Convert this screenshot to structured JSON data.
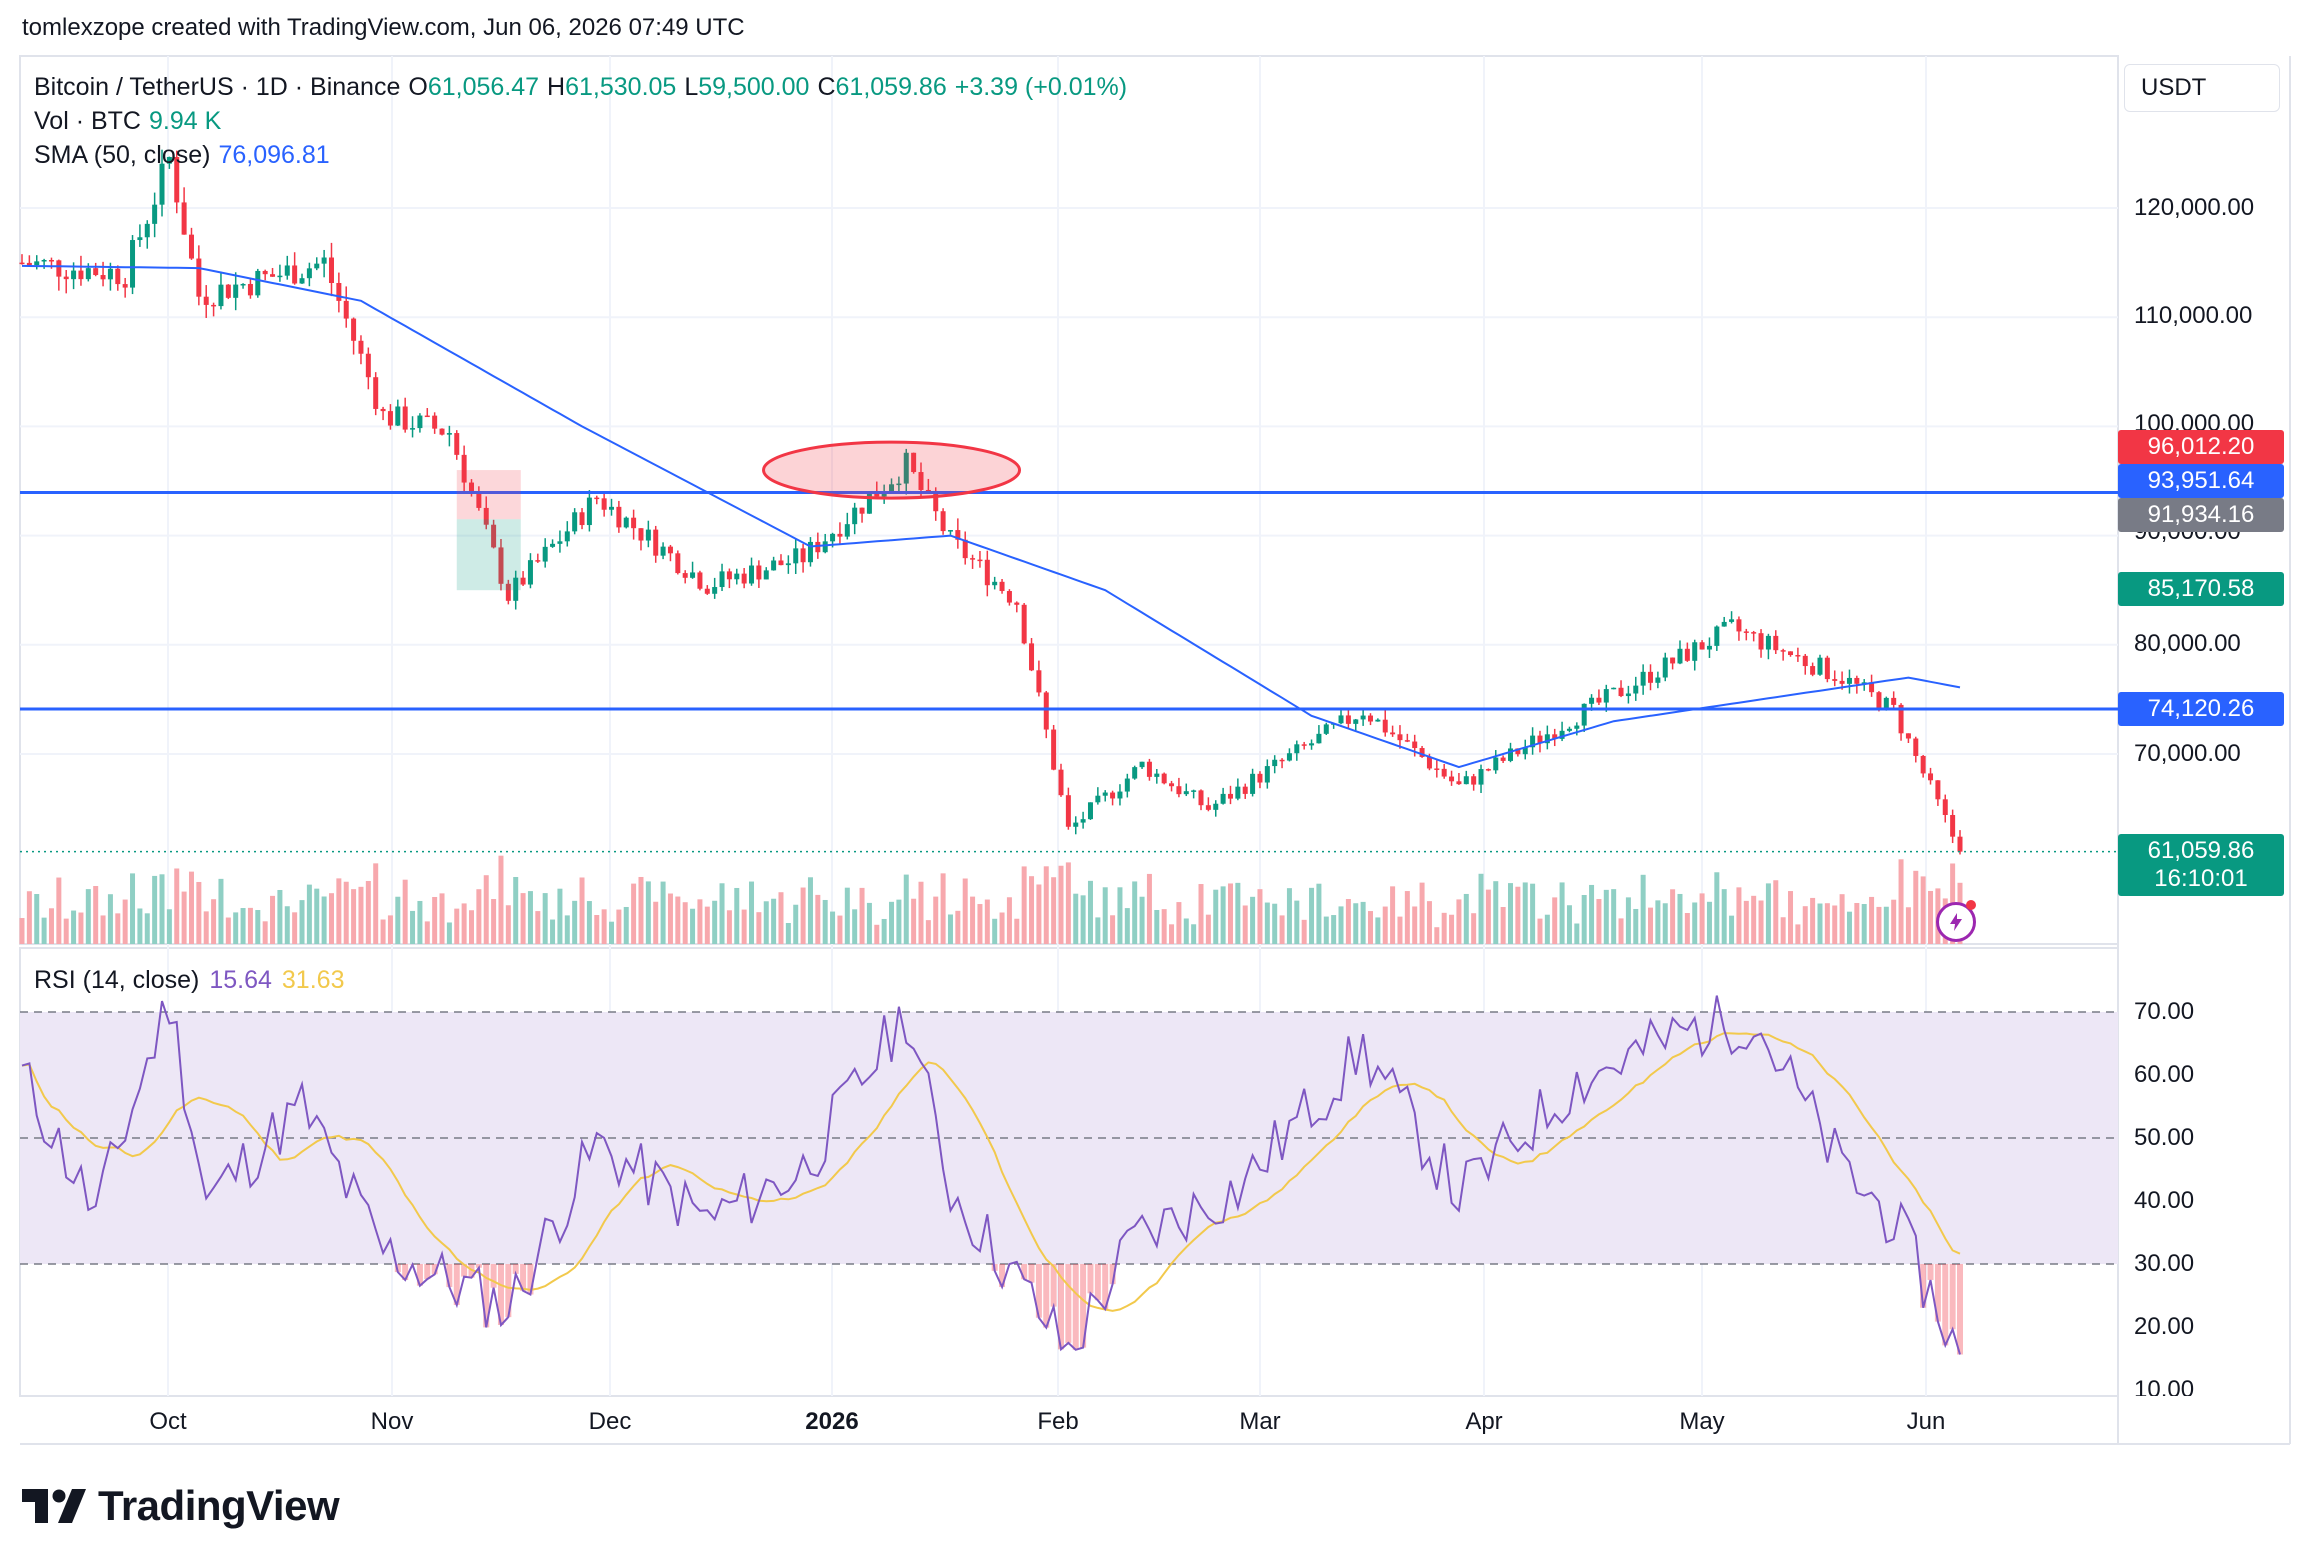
{
  "header": {
    "credit": "tomlexzope created with TradingView.com, Jun 06, 2026 07:49 UTC"
  },
  "legend": {
    "symbol": "Bitcoin / TetherUS · 1D · Binance",
    "o_label": "O",
    "o_value": "61,056.47",
    "h_label": "H",
    "h_value": "61,530.05",
    "l_label": "L",
    "l_value": "59,500.00",
    "c_label": "C",
    "c_value": "61,059.86",
    "change": "+3.39 (+0.01%)",
    "vol_label": "Vol · BTC",
    "vol_value": "9.94 K",
    "sma_label": "SMA (50, close)",
    "sma_value": "76,096.81"
  },
  "rsi_legend": {
    "label": "RSI (14, close)",
    "value": "15.64",
    "ma_value": "31.63"
  },
  "price_scale": {
    "currency": "USDT",
    "ticks": [
      "120,000.00",
      "110,000.00",
      "100,000.00",
      "90,000.00",
      "80,000.00",
      "70,000.00"
    ],
    "badges": {
      "high_marker": "96,012.20",
      "upper_line": "93,951.64",
      "gray_marker": "91,934.16",
      "sma_marker": "85,170.58",
      "lower_line": "74,120.26",
      "last_price": "61,059.86",
      "countdown": "16:10:01"
    }
  },
  "rsi_scale": {
    "ticks": [
      "70.00",
      "60.00",
      "50.00",
      "40.00",
      "30.00",
      "20.00",
      "10.00"
    ]
  },
  "time_axis": {
    "labels": [
      "Oct",
      "Nov",
      "Dec",
      "2026",
      "Feb",
      "Mar",
      "Apr",
      "May",
      "Jun"
    ]
  },
  "footer": {
    "logo_text": "TradingView"
  },
  "colors": {
    "up": "#089981",
    "down": "#f23645",
    "sma": "#2962ff",
    "hline": "#2962ff",
    "rsi": "#7e57c2",
    "rsi_ma": "#f2c94c",
    "rsi_band": "#ede7f6",
    "vol_up": "#8fcfc4",
    "vol_down": "#f7a8ad"
  },
  "chart_data": {
    "type": "candlestick",
    "symbol": "BTC/USDT",
    "interval": "1D",
    "ylim": [
      60000,
      126000
    ],
    "horizontal_lines": [
      93951.64,
      74120.26
    ],
    "annotations": [
      {
        "type": "ellipse",
        "near_date": "mid-Jan 2026",
        "price_level": 96000
      },
      {
        "type": "long_position",
        "near_date": "mid-Nov 2025",
        "entry": 91500,
        "stop": 85000,
        "target": 96000
      }
    ],
    "keypoints": [
      {
        "date": "2025-09-16",
        "close": 115000
      },
      {
        "date": "2025-09-30",
        "close": 114000
      },
      {
        "date": "2025-10-06",
        "close": 124500
      },
      {
        "date": "2025-10-10",
        "close": 112000
      },
      {
        "date": "2025-10-27",
        "close": 115000
      },
      {
        "date": "2025-11-04",
        "close": 101000
      },
      {
        "date": "2025-11-13",
        "close": 99500
      },
      {
        "date": "2025-11-21",
        "close": 84500
      },
      {
        "date": "2025-12-03",
        "close": 93500
      },
      {
        "date": "2025-12-18",
        "close": 85500
      },
      {
        "date": "2025-12-31",
        "close": 88000
      },
      {
        "date": "2026-01-14",
        "close": 96500
      },
      {
        "date": "2026-01-20",
        "close": 89500
      },
      {
        "date": "2026-01-29",
        "close": 84000
      },
      {
        "date": "2026-02-05",
        "close": 63000
      },
      {
        "date": "2026-02-15",
        "close": 69000
      },
      {
        "date": "2026-02-24",
        "close": 65000
      },
      {
        "date": "2026-03-17",
        "close": 74000
      },
      {
        "date": "2026-03-30",
        "close": 67000
      },
      {
        "date": "2026-04-15",
        "close": 73500
      },
      {
        "date": "2026-05-06",
        "close": 81500
      },
      {
        "date": "2026-05-21",
        "close": 77000
      },
      {
        "date": "2026-05-28",
        "close": 74000
      },
      {
        "date": "2026-06-06",
        "close": 61059.86
      }
    ],
    "sma50_keypoints": [
      {
        "date": "2025-09-16",
        "value": 114700
      },
      {
        "date": "2025-10-10",
        "value": 114500
      },
      {
        "date": "2025-11-01",
        "value": 111500
      },
      {
        "date": "2025-12-01",
        "value": 100000
      },
      {
        "date": "2026-01-01",
        "value": 89000
      },
      {
        "date": "2026-01-20",
        "value": 90000
      },
      {
        "date": "2026-02-10",
        "value": 85000
      },
      {
        "date": "2026-03-10",
        "value": 73500
      },
      {
        "date": "2026-03-30",
        "value": 68800
      },
      {
        "date": "2026-04-20",
        "value": 73000
      },
      {
        "date": "2026-05-15",
        "value": 75500
      },
      {
        "date": "2026-05-30",
        "value": 77000
      },
      {
        "date": "2026-06-06",
        "value": 76096.81
      }
    ],
    "rsi": {
      "ylim": [
        10,
        75
      ],
      "overbought": 70,
      "oversold": 30,
      "mid": 50,
      "keypoints": [
        {
          "date": "2025-09-16",
          "value": 60
        },
        {
          "date": "2025-09-26",
          "value": 38
        },
        {
          "date": "2025-10-06",
          "value": 72
        },
        {
          "date": "2025-10-11",
          "value": 40
        },
        {
          "date": "2025-10-24",
          "value": 55
        },
        {
          "date": "2025-11-04",
          "value": 32
        },
        {
          "date": "2025-11-21",
          "value": 23
        },
        {
          "date": "2025-12-03",
          "value": 49
        },
        {
          "date": "2025-12-18",
          "value": 37
        },
        {
          "date": "2025-12-31",
          "value": 45
        },
        {
          "date": "2026-01-14",
          "value": 70
        },
        {
          "date": "2026-01-20",
          "value": 42
        },
        {
          "date": "2026-02-05",
          "value": 16
        },
        {
          "date": "2026-02-14",
          "value": 34
        },
        {
          "date": "2026-02-28",
          "value": 42
        },
        {
          "date": "2026-03-17",
          "value": 64
        },
        {
          "date": "2026-03-30",
          "value": 41
        },
        {
          "date": "2026-04-15",
          "value": 59
        },
        {
          "date": "2026-04-30",
          "value": 67
        },
        {
          "date": "2026-05-09",
          "value": 69
        },
        {
          "date": "2026-05-21",
          "value": 45
        },
        {
          "date": "2026-05-28",
          "value": 37
        },
        {
          "date": "2026-06-06",
          "value": 15.64
        }
      ],
      "ma_last": 31.63
    }
  }
}
